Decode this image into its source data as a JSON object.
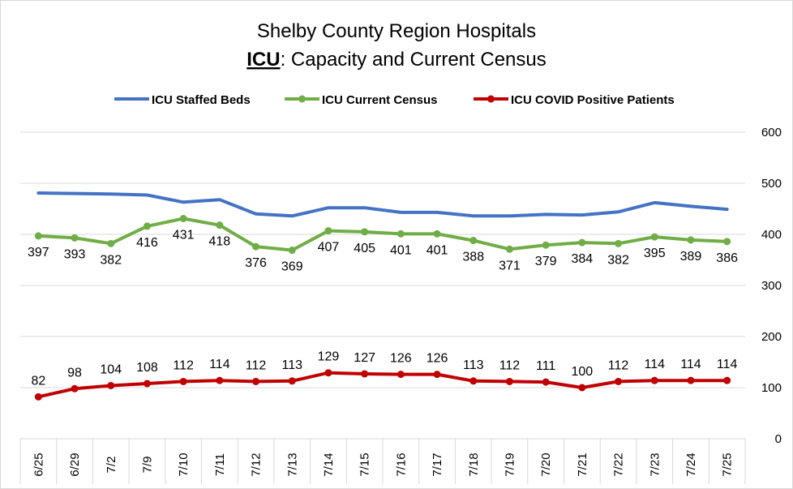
{
  "chart_data": {
    "type": "line",
    "title": "Shelby County Region Hospitals",
    "subtitle_prefix": "ICU",
    "subtitle_rest": ": Capacity and Current Census",
    "categories": [
      "6/25",
      "6/29",
      "7/2",
      "7/9",
      "7/10",
      "7/11",
      "7/12",
      "7/13",
      "7/14",
      "7/15",
      "7/16",
      "7/17",
      "7/18",
      "7/19",
      "7/20",
      "7/21",
      "7/22",
      "7/23",
      "7/24",
      "7/25"
    ],
    "series": [
      {
        "name": "ICU Staffed Beds",
        "color": "#4472C4",
        "markers": false,
        "show_labels": false,
        "values": [
          481,
          480,
          479,
          477,
          463,
          468,
          440,
          436,
          452,
          452,
          443,
          443,
          436,
          436,
          439,
          438,
          444,
          462,
          455,
          449
        ]
      },
      {
        "name": "ICU Current Census",
        "color": "#70AD47",
        "markers": true,
        "show_labels": true,
        "label_position": "below",
        "values": [
          397,
          393,
          382,
          416,
          431,
          418,
          376,
          369,
          407,
          405,
          401,
          401,
          388,
          371,
          379,
          384,
          382,
          395,
          389,
          386
        ]
      },
      {
        "name": "ICU COVID Positive Patients",
        "color": "#C00000",
        "markers": true,
        "show_labels": true,
        "label_position": "above",
        "values": [
          82,
          98,
          104,
          108,
          112,
          114,
          112,
          113,
          129,
          127,
          126,
          126,
          113,
          112,
          111,
          100,
          112,
          114,
          114,
          114
        ]
      }
    ],
    "ylim": [
      0,
      600
    ],
    "yticks": [
      0,
      100,
      200,
      300,
      400,
      500,
      600
    ],
    "y_axis_side": "right",
    "grid": true,
    "legend": "top"
  }
}
